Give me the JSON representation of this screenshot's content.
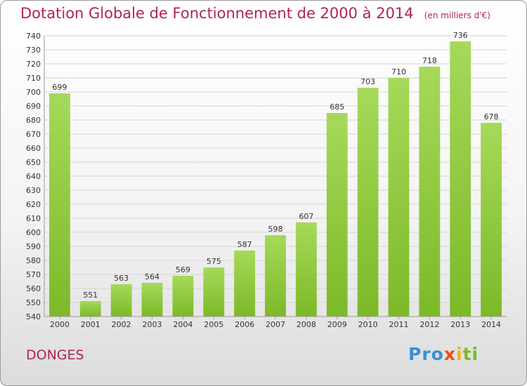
{
  "chart_data": {
    "type": "bar",
    "title": "Dotation Globale de Fonctionnement de 2000 à 2014",
    "subtitle": "(en milliers d'€)",
    "xlabel": "",
    "ylabel": "",
    "categories": [
      "2000",
      "2001",
      "2002",
      "2003",
      "2004",
      "2005",
      "2006",
      "2007",
      "2008",
      "2009",
      "2010",
      "2011",
      "2012",
      "2013",
      "2014"
    ],
    "values": [
      699,
      551,
      563,
      564,
      569,
      575,
      587,
      598,
      607,
      685,
      703,
      710,
      718,
      736,
      678
    ],
    "ylim": [
      540,
      740
    ],
    "yticks": [
      540,
      550,
      560,
      570,
      580,
      590,
      600,
      610,
      620,
      630,
      640,
      650,
      660,
      670,
      680,
      690,
      700,
      710,
      720,
      730,
      740
    ],
    "grid": true,
    "bar_color": "#7cb928",
    "bar_color_light": "#a6d95a"
  },
  "footer": {
    "commune": "DONGES",
    "logo_letters": [
      {
        "ch": "P",
        "color": "#3a8fd6"
      },
      {
        "ch": "r",
        "color": "#3a8fd6"
      },
      {
        "ch": "o",
        "color": "#3a8fd6"
      },
      {
        "ch": "x",
        "color": "#e94e1b"
      },
      {
        "ch": "i",
        "color": "#f2b400"
      },
      {
        "ch": "t",
        "color": "#7cb928"
      },
      {
        "ch": "i",
        "color": "#7cb928"
      }
    ]
  }
}
